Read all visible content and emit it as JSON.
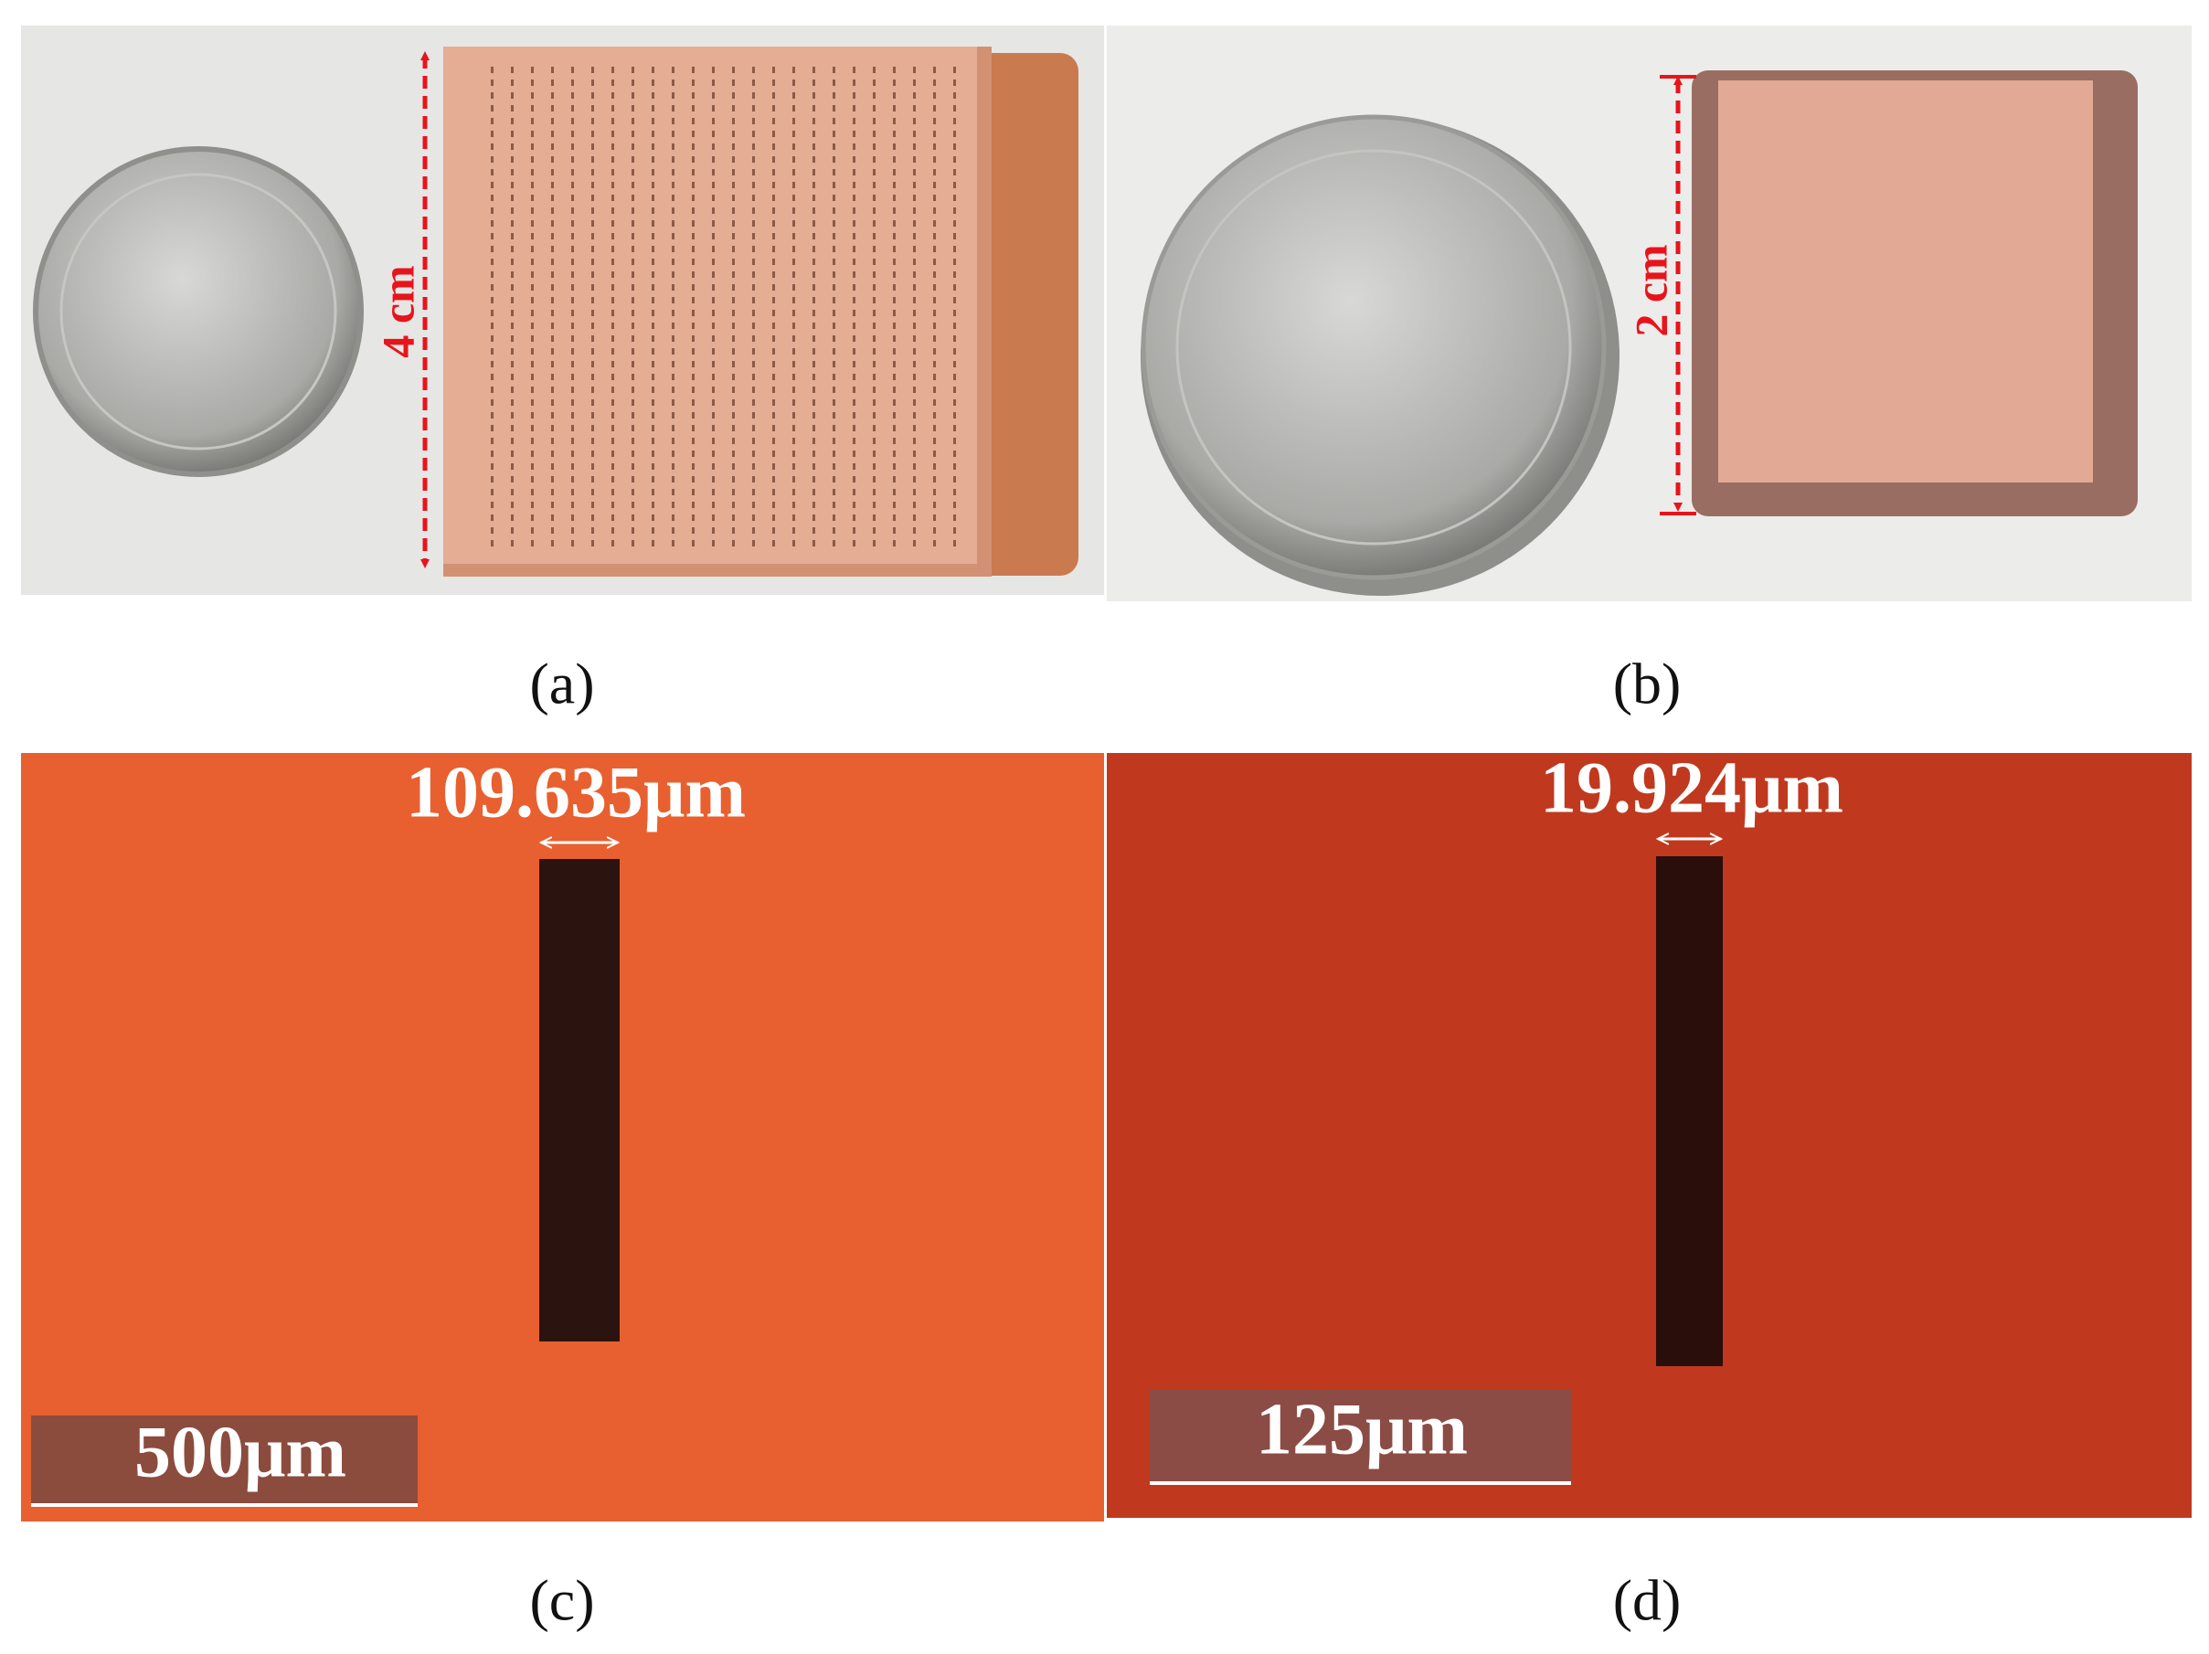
{
  "panels": [
    {
      "label": "(a)",
      "annotation": "4 cm"
    },
    {
      "label": "(b)",
      "annotation": "2 cm"
    },
    {
      "label": "(c)",
      "measurement": "109.635μm",
      "scale_bar": "500μm"
    },
    {
      "label": "(d)",
      "measurement": "19.924μm",
      "scale_bar": "125μm"
    }
  ]
}
